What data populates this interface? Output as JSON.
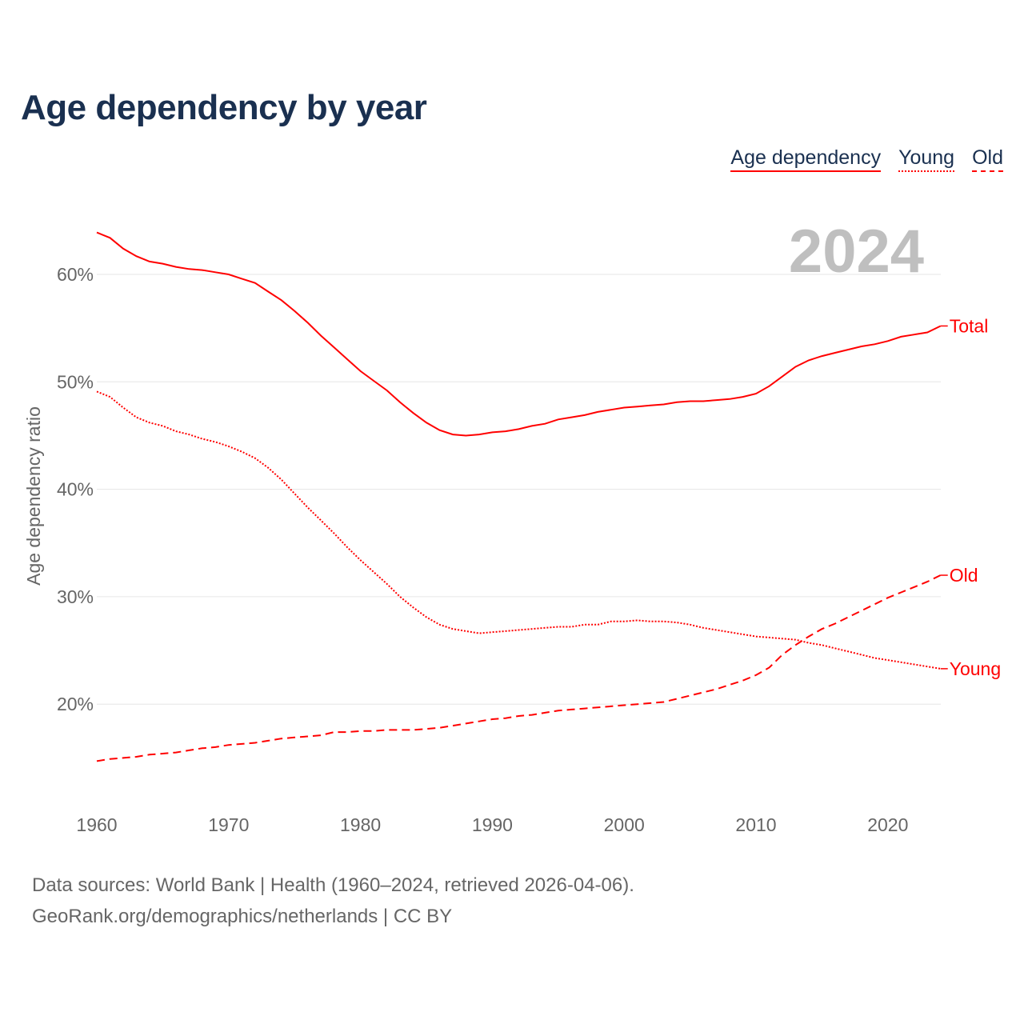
{
  "title": "Age dependency by year",
  "legend": [
    "Age dependency",
    "Young",
    "Old"
  ],
  "year_label": "2024",
  "source_line1": "Data sources: World Bank | Health (1960–2024, retrieved 2026-04-06).",
  "source_line2": "GeoRank.org/demographics/netherlands | CC BY",
  "colors": {
    "line": "#ff0000",
    "title": "#1a3050",
    "grid": "#e6e6e6",
    "year": "#bfbfbf"
  },
  "chart_data": {
    "type": "line",
    "title": "Age dependency by year",
    "xlabel": "",
    "ylabel": "Age dependency ratio",
    "xlim": [
      1960,
      2024
    ],
    "ylim": [
      11,
      66
    ],
    "xticks": [
      1960,
      1970,
      1980,
      1990,
      2000,
      2010,
      2020
    ],
    "yticks": [
      20,
      30,
      40,
      50,
      60
    ],
    "ytick_labels": [
      "20%",
      "30%",
      "40%",
      "50%",
      "60%"
    ],
    "grid": "horizontal",
    "legend_position": "top-right",
    "x": [
      1960,
      1961,
      1962,
      1963,
      1964,
      1965,
      1966,
      1967,
      1968,
      1969,
      1970,
      1971,
      1972,
      1973,
      1974,
      1975,
      1976,
      1977,
      1978,
      1979,
      1980,
      1981,
      1982,
      1983,
      1984,
      1985,
      1986,
      1987,
      1988,
      1989,
      1990,
      1991,
      1992,
      1993,
      1994,
      1995,
      1996,
      1997,
      1998,
      1999,
      2000,
      2001,
      2002,
      2003,
      2004,
      2005,
      2006,
      2007,
      2008,
      2009,
      2010,
      2011,
      2012,
      2013,
      2014,
      2015,
      2016,
      2017,
      2018,
      2019,
      2020,
      2021,
      2022,
      2023,
      2024
    ],
    "series": [
      {
        "name": "Total",
        "style": "solid",
        "values": [
          63.9,
          63.4,
          62.4,
          61.7,
          61.2,
          61.0,
          60.7,
          60.5,
          60.4,
          60.2,
          60.0,
          59.6,
          59.2,
          58.4,
          57.6,
          56.6,
          55.5,
          54.3,
          53.2,
          52.1,
          51.0,
          50.1,
          49.2,
          48.1,
          47.1,
          46.2,
          45.5,
          45.1,
          45.0,
          45.1,
          45.3,
          45.4,
          45.6,
          45.9,
          46.1,
          46.5,
          46.7,
          46.9,
          47.2,
          47.4,
          47.6,
          47.7,
          47.8,
          47.9,
          48.1,
          48.2,
          48.2,
          48.3,
          48.4,
          48.6,
          48.9,
          49.6,
          50.5,
          51.4,
          52.0,
          52.4,
          52.7,
          53.0,
          53.3,
          53.5,
          53.8,
          54.2,
          54.4,
          54.6,
          55.2
        ]
      },
      {
        "name": "Young",
        "style": "dotted",
        "values": [
          49.1,
          48.6,
          47.6,
          46.7,
          46.2,
          45.9,
          45.4,
          45.1,
          44.7,
          44.4,
          44.0,
          43.5,
          42.9,
          42.0,
          40.9,
          39.6,
          38.3,
          37.1,
          35.9,
          34.6,
          33.4,
          32.3,
          31.2,
          30.0,
          29.0,
          28.1,
          27.4,
          27.0,
          26.8,
          26.6,
          26.7,
          26.8,
          26.9,
          27.0,
          27.1,
          27.2,
          27.2,
          27.4,
          27.4,
          27.7,
          27.7,
          27.8,
          27.7,
          27.7,
          27.6,
          27.4,
          27.1,
          26.9,
          26.7,
          26.5,
          26.3,
          26.2,
          26.1,
          26.0,
          25.7,
          25.5,
          25.2,
          24.9,
          24.6,
          24.3,
          24.1,
          23.9,
          23.7,
          23.5,
          23.3
        ]
      },
      {
        "name": "Old",
        "style": "dashed",
        "values": [
          14.7,
          14.9,
          15.0,
          15.1,
          15.3,
          15.4,
          15.5,
          15.7,
          15.9,
          16.0,
          16.2,
          16.3,
          16.4,
          16.6,
          16.8,
          16.9,
          17.0,
          17.1,
          17.4,
          17.4,
          17.5,
          17.5,
          17.6,
          17.6,
          17.6,
          17.7,
          17.8,
          18.0,
          18.2,
          18.4,
          18.6,
          18.7,
          18.9,
          19.0,
          19.2,
          19.4,
          19.5,
          19.6,
          19.7,
          19.8,
          19.9,
          20.0,
          20.1,
          20.2,
          20.5,
          20.8,
          21.1,
          21.4,
          21.8,
          22.2,
          22.7,
          23.4,
          24.6,
          25.5,
          26.3,
          27.0,
          27.5,
          28.1,
          28.7,
          29.3,
          29.9,
          30.4,
          30.9,
          31.4,
          32.0
        ]
      }
    ]
  }
}
